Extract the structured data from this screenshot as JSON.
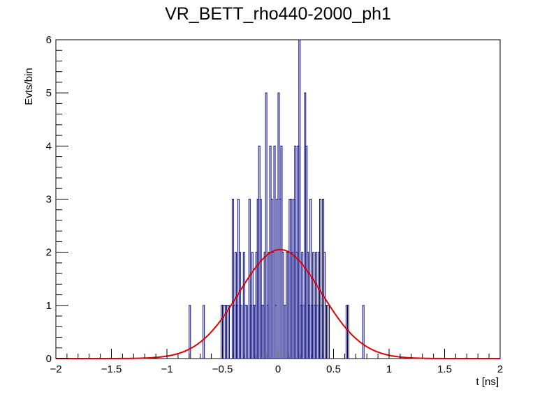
{
  "chart_data": {
    "type": "histogram",
    "title": "VR_BETT_rho440-2000_ph1",
    "xlabel": "t [ns]",
    "ylabel": "Evts/bin",
    "xlim": [
      -2,
      2
    ],
    "ylim": [
      0,
      6
    ],
    "bin_width": 0.0125,
    "x_ticks": [
      -2,
      -1.5,
      -1,
      -0.5,
      0,
      0.5,
      1,
      1.5,
      2
    ],
    "x_tick_labels": [
      "−2",
      "−1.5",
      "−1",
      "−0.5",
      "0",
      "0.5",
      "1",
      "1.5",
      "2"
    ],
    "y_ticks": [
      0,
      1,
      2,
      3,
      4,
      5,
      6
    ],
    "y_tick_labels": [
      "0",
      "1",
      "2",
      "3",
      "4",
      "5",
      "6"
    ],
    "histogram_color": "#000080",
    "fit_color": "#e00000",
    "bins": [
      {
        "x": -0.8,
        "count": 1
      },
      {
        "x": -0.675,
        "count": 1
      },
      {
        "x": -0.5125,
        "count": 1
      },
      {
        "x": -0.5,
        "count": 1
      },
      {
        "x": -0.4875,
        "count": 1
      },
      {
        "x": -0.475,
        "count": 1
      },
      {
        "x": -0.4625,
        "count": 1
      },
      {
        "x": -0.45,
        "count": 1
      },
      {
        "x": -0.4125,
        "count": 3
      },
      {
        "x": -0.4,
        "count": 1
      },
      {
        "x": -0.3875,
        "count": 2
      },
      {
        "x": -0.375,
        "count": 1
      },
      {
        "x": -0.3625,
        "count": 3
      },
      {
        "x": -0.35,
        "count": 2
      },
      {
        "x": -0.3375,
        "count": 1
      },
      {
        "x": -0.3125,
        "count": 2
      },
      {
        "x": -0.3,
        "count": 1
      },
      {
        "x": -0.2875,
        "count": 1
      },
      {
        "x": -0.2625,
        "count": 3
      },
      {
        "x": -0.25,
        "count": 1
      },
      {
        "x": -0.2375,
        "count": 2
      },
      {
        "x": -0.225,
        "count": 1
      },
      {
        "x": -0.2125,
        "count": 1
      },
      {
        "x": -0.2,
        "count": 2
      },
      {
        "x": -0.1875,
        "count": 3
      },
      {
        "x": -0.175,
        "count": 4
      },
      {
        "x": -0.1625,
        "count": 3
      },
      {
        "x": -0.15,
        "count": 1
      },
      {
        "x": -0.1375,
        "count": 1
      },
      {
        "x": -0.125,
        "count": 2
      },
      {
        "x": -0.1125,
        "count": 5
      },
      {
        "x": -0.1,
        "count": 1
      },
      {
        "x": -0.0875,
        "count": 2
      },
      {
        "x": -0.075,
        "count": 4
      },
      {
        "x": -0.0625,
        "count": 3
      },
      {
        "x": -0.05,
        "count": 2
      },
      {
        "x": -0.0375,
        "count": 4
      },
      {
        "x": -0.025,
        "count": 1
      },
      {
        "x": -0.0125,
        "count": 3
      },
      {
        "x": 0.0,
        "count": 5
      },
      {
        "x": 0.0125,
        "count": 3
      },
      {
        "x": 0.025,
        "count": 4
      },
      {
        "x": 0.0375,
        "count": 2
      },
      {
        "x": 0.05,
        "count": 1
      },
      {
        "x": 0.0625,
        "count": 1
      },
      {
        "x": 0.075,
        "count": 2
      },
      {
        "x": 0.0875,
        "count": 2
      },
      {
        "x": 0.1,
        "count": 3
      },
      {
        "x": 0.1125,
        "count": 3
      },
      {
        "x": 0.125,
        "count": 2
      },
      {
        "x": 0.1375,
        "count": 3
      },
      {
        "x": 0.15,
        "count": 4
      },
      {
        "x": 0.1625,
        "count": 2
      },
      {
        "x": 0.175,
        "count": 4
      },
      {
        "x": 0.1875,
        "count": 6
      },
      {
        "x": 0.2,
        "count": 1
      },
      {
        "x": 0.2125,
        "count": 2
      },
      {
        "x": 0.225,
        "count": 1
      },
      {
        "x": 0.2375,
        "count": 5
      },
      {
        "x": 0.25,
        "count": 4
      },
      {
        "x": 0.2625,
        "count": 2
      },
      {
        "x": 0.275,
        "count": 1
      },
      {
        "x": 0.2875,
        "count": 3
      },
      {
        "x": 0.3,
        "count": 1
      },
      {
        "x": 0.3125,
        "count": 2
      },
      {
        "x": 0.325,
        "count": 1
      },
      {
        "x": 0.3375,
        "count": 2
      },
      {
        "x": 0.35,
        "count": 1
      },
      {
        "x": 0.3625,
        "count": 2
      },
      {
        "x": 0.375,
        "count": 3
      },
      {
        "x": 0.3875,
        "count": 1
      },
      {
        "x": 0.4,
        "count": 3
      },
      {
        "x": 0.4125,
        "count": 2
      },
      {
        "x": 0.425,
        "count": 1
      },
      {
        "x": 0.4375,
        "count": 1
      },
      {
        "x": 0.45,
        "count": 1
      },
      {
        "x": 0.6125,
        "count": 1
      },
      {
        "x": 0.625,
        "count": 1
      },
      {
        "x": 0.7625,
        "count": 1
      }
    ],
    "fit": {
      "type": "gaussian",
      "constant": 2.05,
      "mean": 0.02,
      "sigma": 0.37
    }
  }
}
